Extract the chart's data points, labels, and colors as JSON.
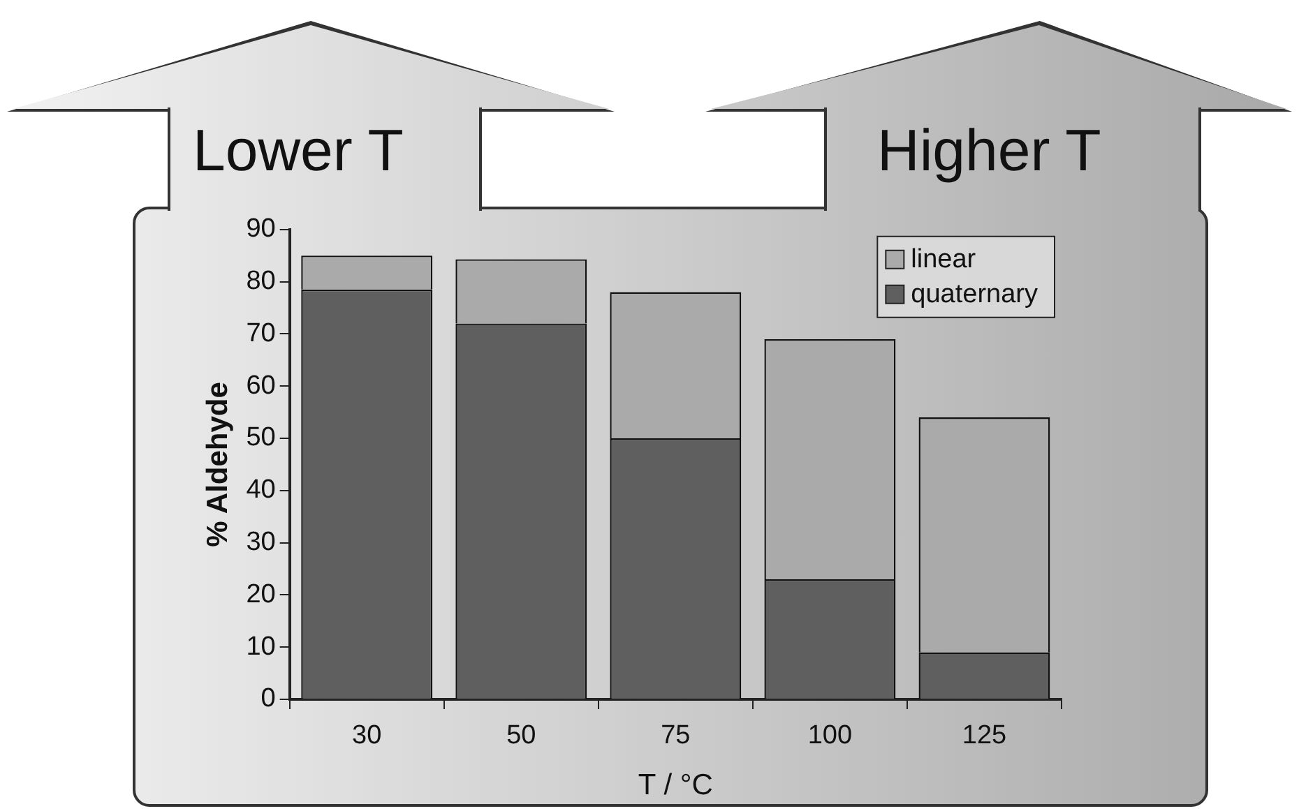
{
  "chart_data": {
    "type": "bar",
    "stacked": true,
    "xlabel": "T / °C",
    "ylabel": "% Aldehyde",
    "categories": [
      "30",
      "50",
      "75",
      "100",
      "125"
    ],
    "series": [
      {
        "name": "quaternary",
        "color": "#5f5f5f",
        "values": [
          78.5,
          72,
          50,
          23,
          9
        ]
      },
      {
        "name": "linear",
        "color": "#aaaaaa",
        "values": [
          6.5,
          12.3,
          28,
          46,
          45
        ]
      }
    ],
    "ylim": [
      0,
      90
    ],
    "yticks": [
      0,
      10,
      20,
      30,
      40,
      50,
      60,
      70,
      80,
      90
    ],
    "grid": false,
    "legend": "top right",
    "annotations": [
      "Lower T",
      "Higher T"
    ]
  }
}
